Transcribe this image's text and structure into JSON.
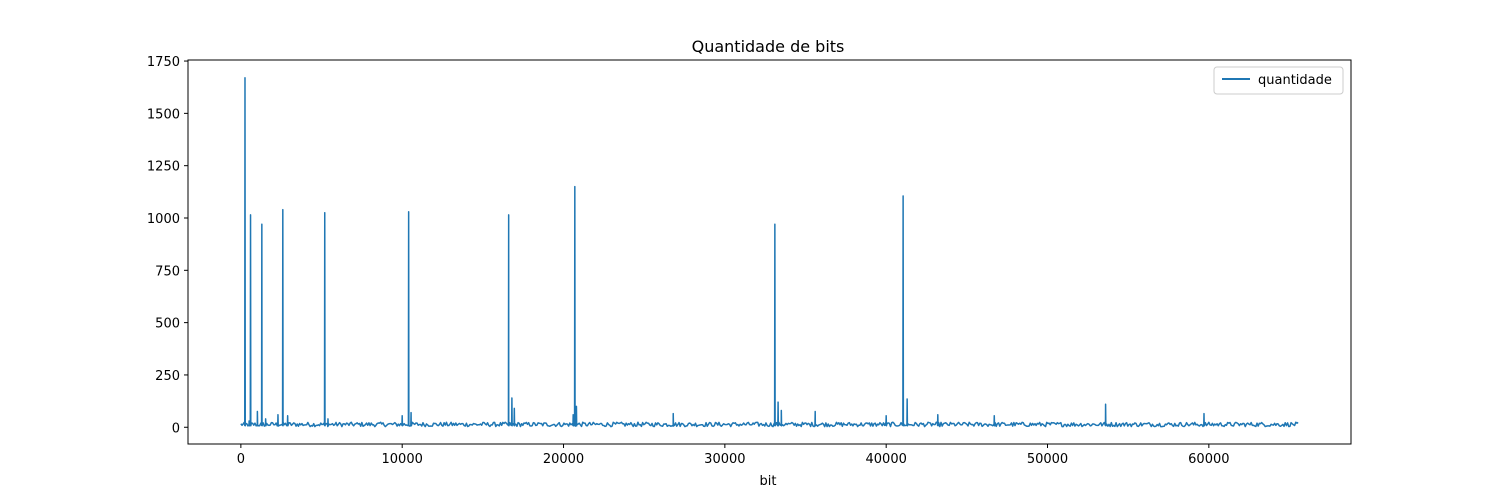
{
  "chart_data": {
    "type": "line",
    "title": "Quantidade de bits",
    "xlabel": "bit",
    "ylabel": "",
    "xlim": [
      -3276.75,
      68811.75
    ],
    "ylim": [
      -80,
      1755
    ],
    "xticks": [
      0,
      10000,
      20000,
      30000,
      40000,
      50000,
      60000
    ],
    "yticks": [
      0,
      250,
      500,
      750,
      1000,
      1250,
      1500,
      1750
    ],
    "grid": false,
    "legend_position": "top-right",
    "colors": {
      "series": "#1f77b4",
      "axes": "#000000",
      "background": "#ffffff"
    },
    "series": [
      {
        "name": "quantidade",
        "baseline": {
          "x_start": 0,
          "x_end": 65535,
          "low": 3,
          "high": 24,
          "approx_points": 900
        },
        "spikes": [
          {
            "x": 256,
            "y": 1670
          },
          {
            "x": 512,
            "y": 30
          },
          {
            "x": 600,
            "y": 1015
          },
          {
            "x": 1024,
            "y": 75
          },
          {
            "x": 1300,
            "y": 970
          },
          {
            "x": 1536,
            "y": 40
          },
          {
            "x": 2300,
            "y": 60
          },
          {
            "x": 2600,
            "y": 1040
          },
          {
            "x": 2900,
            "y": 55
          },
          {
            "x": 5200,
            "y": 1025
          },
          {
            "x": 5400,
            "y": 40
          },
          {
            "x": 10000,
            "y": 55
          },
          {
            "x": 10400,
            "y": 1030
          },
          {
            "x": 10550,
            "y": 70
          },
          {
            "x": 16600,
            "y": 1015
          },
          {
            "x": 16800,
            "y": 140
          },
          {
            "x": 16950,
            "y": 90
          },
          {
            "x": 20600,
            "y": 60
          },
          {
            "x": 20700,
            "y": 1150
          },
          {
            "x": 20800,
            "y": 100
          },
          {
            "x": 26800,
            "y": 65
          },
          {
            "x": 33100,
            "y": 970
          },
          {
            "x": 33300,
            "y": 120
          },
          {
            "x": 33500,
            "y": 80
          },
          {
            "x": 35600,
            "y": 75
          },
          {
            "x": 40000,
            "y": 55
          },
          {
            "x": 41050,
            "y": 1105
          },
          {
            "x": 41300,
            "y": 135
          },
          {
            "x": 43200,
            "y": 60
          },
          {
            "x": 46700,
            "y": 55
          },
          {
            "x": 53600,
            "y": 110
          },
          {
            "x": 59700,
            "y": 65
          }
        ]
      }
    ]
  }
}
